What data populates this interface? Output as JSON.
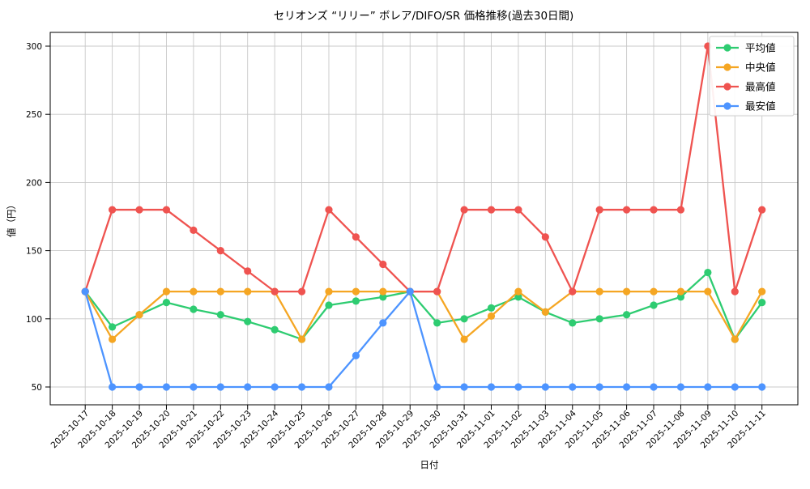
{
  "chart_data": {
    "type": "line",
    "title": "セリオンズ “リリー” ボレア/DIFO/SR 価格推移(過去30日間)",
    "xlabel": "日付",
    "ylabel": "値（円）",
    "x": [
      "2025-10-17",
      "2025-10-18",
      "2025-10-19",
      "2025-10-20",
      "2025-10-21",
      "2025-10-22",
      "2025-10-23",
      "2025-10-24",
      "2025-10-25",
      "2025-10-26",
      "2025-10-27",
      "2025-10-28",
      "2025-10-29",
      "2025-10-30",
      "2025-10-31",
      "2025-11-01",
      "2025-11-02",
      "2025-11-03",
      "2025-11-04",
      "2025-11-05",
      "2025-11-06",
      "2025-11-07",
      "2025-11-08",
      "2025-11-09",
      "2025-11-10",
      "2025-11-11"
    ],
    "series": [
      {
        "name": "平均値",
        "key": "average",
        "color": "#2ecc71",
        "values": [
          120,
          94,
          103,
          112,
          107,
          103,
          98,
          92,
          85,
          110,
          113,
          116,
          120,
          97,
          100,
          108,
          116,
          105,
          97,
          100,
          103,
          110,
          116,
          134,
          85,
          112
        ]
      },
      {
        "name": "中央値",
        "key": "median",
        "color": "#f5a623",
        "values": [
          120,
          85,
          103,
          120,
          120,
          120,
          120,
          120,
          85,
          120,
          120,
          120,
          120,
          120,
          85,
          102,
          120,
          105,
          120,
          120,
          120,
          120,
          120,
          120,
          85,
          120
        ]
      },
      {
        "name": "最高値",
        "key": "max",
        "color": "#ef5350",
        "values": [
          120,
          180,
          180,
          180,
          165,
          150,
          135,
          120,
          120,
          180,
          160,
          140,
          120,
          120,
          180,
          180,
          180,
          160,
          120,
          180,
          180,
          180,
          180,
          300,
          120,
          180
        ]
      },
      {
        "name": "最安値",
        "key": "min",
        "color": "#4d94ff",
        "values": [
          120,
          50,
          50,
          50,
          50,
          50,
          50,
          50,
          50,
          50,
          73,
          97,
          120,
          50,
          50,
          50,
          50,
          50,
          50,
          50,
          50,
          50,
          50,
          50,
          50,
          50
        ]
      }
    ],
    "yticks": [
      50,
      100,
      150,
      200,
      250,
      300
    ],
    "ylim": [
      37,
      312
    ],
    "grid": true,
    "legend_position": "upper right",
    "colors": {
      "grid": "#c8c8c8",
      "axis": "#000000",
      "legend_border": "#cccccc",
      "legend_bg": "#ffffff",
      "background": "#ffffff"
    }
  }
}
